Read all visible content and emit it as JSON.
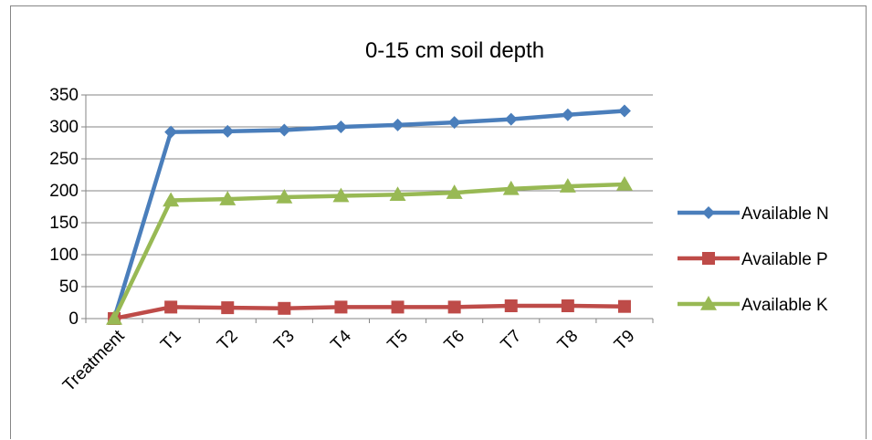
{
  "chart_data": {
    "type": "line",
    "title": "0-15 cm soil depth",
    "categories": [
      "Treatment",
      "T1",
      "T2",
      "T3",
      "T4",
      "T5",
      "T6",
      "T7",
      "T8",
      "T9"
    ],
    "ylim": [
      0,
      350
    ],
    "yticks": [
      0,
      50,
      100,
      150,
      200,
      250,
      300,
      350
    ],
    "grid": true,
    "legend": "right",
    "series": [
      {
        "name": "Available N",
        "color": "#4a7ebb",
        "marker": "diamond",
        "values": [
          0,
          292,
          293,
          295,
          300,
          303,
          307,
          312,
          319,
          325
        ]
      },
      {
        "name": "Available P",
        "color": "#be4b48",
        "marker": "square",
        "values": [
          0,
          18,
          17,
          16,
          18,
          18,
          18,
          20,
          20,
          19
        ]
      },
      {
        "name": "Available K",
        "color": "#98b954",
        "marker": "triangle",
        "values": [
          0,
          185,
          187,
          190,
          192,
          194,
          197,
          203,
          207,
          210
        ]
      }
    ]
  }
}
